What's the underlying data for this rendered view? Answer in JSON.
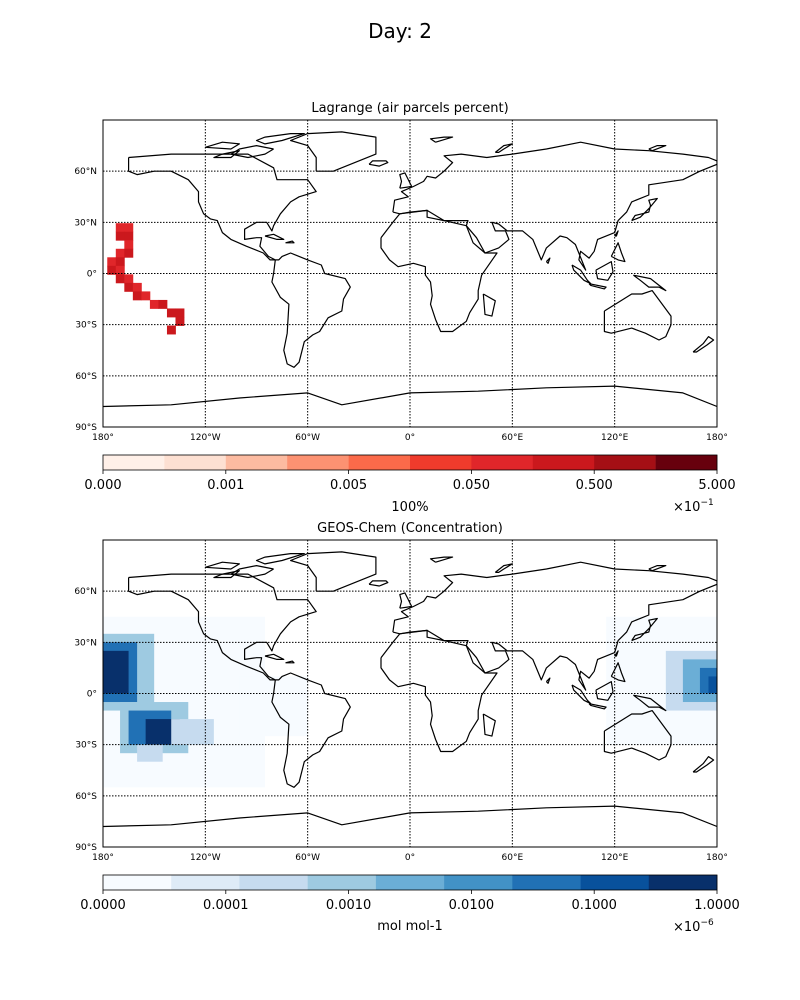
{
  "figure": {
    "title": "Day: 2"
  },
  "panels": [
    {
      "id": "lagrange",
      "title": "Lagrange (air parcels percent)",
      "lat_ticks": [
        "60°N",
        "30°N",
        "0°",
        "30°S",
        "60°S",
        "90°S"
      ],
      "lon_ticks": [
        "180°",
        "120°W",
        "60°W",
        "0°",
        "60°E",
        "120°E",
        "180°"
      ],
      "colorbar": {
        "colors": [
          "#fff0e8",
          "#fde0d2",
          "#fcbba1",
          "#fc9272",
          "#fb6a4a",
          "#ef3b2c",
          "#e0262a",
          "#cb181d",
          "#a50f15",
          "#67000d"
        ],
        "tick_labels": [
          "0.000",
          "0.001",
          "0.005",
          "0.050",
          "0.500",
          "5.000"
        ],
        "label": "100%",
        "multiplier": "×10",
        "exponent": "−1"
      },
      "grid_cells": [
        [
          -170,
          27,
          "#e0262a"
        ],
        [
          -165,
          27,
          "#e0262a"
        ],
        [
          -170,
          22,
          "#cb181d"
        ],
        [
          -165,
          22,
          "#cb181d"
        ],
        [
          -165,
          17,
          "#e0262a"
        ],
        [
          -170,
          12,
          "#e0262a"
        ],
        [
          -165,
          12,
          "#cb181d"
        ],
        [
          -175,
          7,
          "#e0262a"
        ],
        [
          -170,
          7,
          "#cb181d"
        ],
        [
          -175,
          2,
          "#cb181d"
        ],
        [
          -170,
          2,
          "#e0262a"
        ],
        [
          -170,
          -3,
          "#cb181d"
        ],
        [
          -165,
          -3,
          "#e0262a"
        ],
        [
          -165,
          -8,
          "#cb181d"
        ],
        [
          -160,
          -8,
          "#e0262a"
        ],
        [
          -160,
          -13,
          "#cb181d"
        ],
        [
          -155,
          -13,
          "#e0262a"
        ],
        [
          -150,
          -18,
          "#e0262a"
        ],
        [
          -145,
          -18,
          "#cb181d"
        ],
        [
          -140,
          -23,
          "#cb181d"
        ],
        [
          -135,
          -23,
          "#cb181d"
        ],
        [
          -135,
          -28,
          "#cb181d"
        ],
        [
          -140,
          -33,
          "#cb181d"
        ]
      ]
    },
    {
      "id": "geoschem",
      "title": "GEOS-Chem (Concentration)",
      "lat_ticks": [
        "60°N",
        "30°N",
        "0°",
        "30°S",
        "60°S",
        "90°S"
      ],
      "lon_ticks": [
        "180°",
        "120°W",
        "60°W",
        "0°",
        "60°E",
        "120°E",
        "180°"
      ],
      "colorbar": {
        "colors": [
          "#f7fbff",
          "#deebf7",
          "#c6dbef",
          "#9ecae1",
          "#6baed6",
          "#4292c6",
          "#2171b5",
          "#08519c",
          "#08306b"
        ],
        "tick_labels": [
          "0.0000",
          "0.0001",
          "0.0010",
          "0.0100",
          "0.1000",
          "1.0000"
        ],
        "label": "mol mol-1",
        "multiplier": "×10",
        "exponent": "−6"
      },
      "regions": [
        {
          "lon_min": -180,
          "lon_max": -85,
          "lat_min": -55,
          "lat_max": 45,
          "level": 0
        },
        {
          "lon_min": -100,
          "lon_max": -60,
          "lat_min": -25,
          "lat_max": 10,
          "level": 0
        },
        {
          "lon_min": 115,
          "lon_max": 180,
          "lat_min": -30,
          "lat_max": 45,
          "level": 0
        },
        {
          "lon_min": -180,
          "lon_max": -150,
          "lat_min": -10,
          "lat_max": 35,
          "level": 3
        },
        {
          "lon_min": -180,
          "lon_max": -160,
          "lat_min": -5,
          "lat_max": 30,
          "level": 6
        },
        {
          "lon_min": -180,
          "lon_max": -165,
          "lat_min": 0,
          "lat_max": 25,
          "level": 8
        },
        {
          "lon_min": -170,
          "lon_max": -130,
          "lat_min": -35,
          "lat_max": -5,
          "level": 3
        },
        {
          "lon_min": -165,
          "lon_max": -140,
          "lat_min": -30,
          "lat_max": -10,
          "level": 6
        },
        {
          "lon_min": -155,
          "lon_max": -135,
          "lat_min": -30,
          "lat_max": -15,
          "level": 8
        },
        {
          "lon_min": -140,
          "lon_max": -115,
          "lat_min": -30,
          "lat_max": -15,
          "level": 2
        },
        {
          "lon_min": -160,
          "lon_max": -145,
          "lat_min": -40,
          "lat_max": -30,
          "level": 2
        },
        {
          "lon_min": 150,
          "lon_max": 180,
          "lat_min": -10,
          "lat_max": 25,
          "level": 2
        },
        {
          "lon_min": 160,
          "lon_max": 180,
          "lat_min": -5,
          "lat_max": 20,
          "level": 4
        },
        {
          "lon_min": 170,
          "lon_max": 180,
          "lat_min": 0,
          "lat_max": 15,
          "level": 6
        },
        {
          "lon_min": 175,
          "lon_max": 180,
          "lat_min": 0,
          "lat_max": 10,
          "level": 7
        }
      ]
    }
  ],
  "coastlines": [
    [
      [
        -165,
        68
      ],
      [
        -140,
        70
      ],
      [
        -125,
        70
      ],
      [
        -95,
        70
      ],
      [
        -80,
        62
      ],
      [
        -78,
        55
      ],
      [
        -60,
        55
      ],
      [
        -55,
        48
      ],
      [
        -65,
        45
      ],
      [
        -70,
        42
      ],
      [
        -76,
        35
      ],
      [
        -80,
        28
      ],
      [
        -81,
        25
      ],
      [
        -84,
        30
      ],
      [
        -90,
        30
      ],
      [
        -97,
        26
      ],
      [
        -97,
        20
      ],
      [
        -90,
        21
      ],
      [
        -87,
        21
      ],
      [
        -88,
        16
      ],
      [
        -83,
        10
      ],
      [
        -79,
        8
      ],
      [
        -80,
        0
      ],
      [
        -81,
        -5
      ],
      [
        -76,
        -14
      ],
      [
        -71,
        -18
      ],
      [
        -72,
        -35
      ],
      [
        -74,
        -45
      ],
      [
        -72,
        -53
      ],
      [
        -68,
        -55
      ],
      [
        -65,
        -52
      ],
      [
        -62,
        -40
      ],
      [
        -57,
        -36
      ],
      [
        -53,
        -34
      ],
      [
        -48,
        -26
      ],
      [
        -40,
        -22
      ],
      [
        -39,
        -15
      ],
      [
        -35,
        -8
      ],
      [
        -38,
        -3
      ],
      [
        -50,
        0
      ],
      [
        -52,
        5
      ],
      [
        -60,
        8
      ],
      [
        -70,
        12
      ],
      [
        -75,
        10
      ],
      [
        -77,
        8
      ],
      [
        -82,
        8
      ],
      [
        -86,
        12
      ],
      [
        -91,
        14
      ],
      [
        -96,
        16
      ],
      [
        -105,
        20
      ],
      [
        -110,
        24
      ],
      [
        -113,
        31
      ],
      [
        -117,
        32
      ],
      [
        -121,
        35
      ],
      [
        -124,
        42
      ],
      [
        -124,
        48
      ],
      [
        -130,
        55
      ],
      [
        -140,
        60
      ],
      [
        -150,
        60
      ],
      [
        -160,
        58
      ],
      [
        -165,
        60
      ],
      [
        -165,
        68
      ]
    ],
    [
      [
        -55,
        60
      ],
      [
        -45,
        60
      ],
      [
        -20,
        70
      ],
      [
        -20,
        80
      ],
      [
        -40,
        83
      ],
      [
        -60,
        82
      ],
      [
        -70,
        78
      ],
      [
        -60,
        75
      ],
      [
        -55,
        68
      ],
      [
        -55,
        60
      ]
    ],
    [
      [
        -10,
        36
      ],
      [
        -9,
        43
      ],
      [
        -1,
        45
      ],
      [
        -5,
        48
      ],
      [
        2,
        51
      ],
      [
        8,
        54
      ],
      [
        10,
        57
      ],
      [
        15,
        56
      ],
      [
        20,
        60
      ],
      [
        25,
        65
      ],
      [
        20,
        69
      ],
      [
        30,
        70
      ],
      [
        45,
        68
      ],
      [
        60,
        70
      ],
      [
        80,
        73
      ],
      [
        100,
        77
      ],
      [
        120,
        73
      ],
      [
        140,
        72
      ],
      [
        160,
        70
      ],
      [
        175,
        68
      ],
      [
        180,
        66
      ],
      [
        180,
        64
      ],
      [
        170,
        60
      ],
      [
        160,
        55
      ],
      [
        140,
        52
      ],
      [
        140,
        46
      ],
      [
        130,
        42
      ],
      [
        127,
        36
      ],
      [
        122,
        31
      ],
      [
        120,
        24
      ],
      [
        110,
        20
      ],
      [
        108,
        13
      ],
      [
        105,
        9
      ],
      [
        100,
        13
      ],
      [
        99,
        8
      ],
      [
        103,
        2
      ],
      [
        97,
        17
      ],
      [
        92,
        21
      ],
      [
        88,
        22
      ],
      [
        80,
        15
      ],
      [
        77,
        8
      ],
      [
        72,
        20
      ],
      [
        66,
        25
      ],
      [
        57,
        25
      ],
      [
        52,
        29
      ],
      [
        48,
        30
      ],
      [
        50,
        25
      ],
      [
        56,
        25
      ],
      [
        58,
        20
      ],
      [
        52,
        15
      ],
      [
        44,
        12
      ],
      [
        39,
        21
      ],
      [
        33,
        28
      ],
      [
        34,
        31
      ],
      [
        30,
        31
      ],
      [
        20,
        31
      ],
      [
        10,
        33
      ],
      [
        10,
        37
      ],
      [
        0,
        36
      ],
      [
        -6,
        35
      ],
      [
        -10,
        36
      ]
    ],
    [
      [
        -17,
        21
      ],
      [
        -17,
        15
      ],
      [
        -12,
        8
      ],
      [
        -7,
        4
      ],
      [
        2,
        6
      ],
      [
        9,
        4
      ],
      [
        9,
        -1
      ],
      [
        12,
        -5
      ],
      [
        13,
        -13
      ],
      [
        12,
        -18
      ],
      [
        15,
        -27
      ],
      [
        18,
        -34
      ],
      [
        25,
        -34
      ],
      [
        33,
        -28
      ],
      [
        35,
        -23
      ],
      [
        40,
        -15
      ],
      [
        40,
        -10
      ],
      [
        42,
        -1
      ],
      [
        51,
        12
      ],
      [
        44,
        12
      ],
      [
        37,
        18
      ],
      [
        33,
        28
      ],
      [
        20,
        31
      ],
      [
        10,
        37
      ],
      [
        -6,
        35
      ],
      [
        -10,
        30
      ],
      [
        -17,
        21
      ]
    ],
    [
      [
        114,
        -22
      ],
      [
        114,
        -34
      ],
      [
        118,
        -35
      ],
      [
        130,
        -32
      ],
      [
        138,
        -35
      ],
      [
        146,
        -39
      ],
      [
        150,
        -37
      ],
      [
        153,
        -30
      ],
      [
        153,
        -25
      ],
      [
        142,
        -10
      ],
      [
        136,
        -12
      ],
      [
        130,
        -12
      ],
      [
        122,
        -17
      ],
      [
        114,
        -22
      ]
    ],
    [
      [
        -180,
        -78
      ],
      [
        -140,
        -77
      ],
      [
        -100,
        -73
      ],
      [
        -60,
        -70
      ],
      [
        -40,
        -77
      ],
      [
        0,
        -70
      ],
      [
        40,
        -69
      ],
      [
        80,
        -67
      ],
      [
        120,
        -66
      ],
      [
        160,
        -70
      ],
      [
        180,
        -78
      ]
    ],
    [
      [
        -6,
        50
      ],
      [
        -5,
        54
      ],
      [
        -6,
        58
      ],
      [
        -3,
        59
      ],
      [
        0,
        53
      ],
      [
        1,
        51
      ],
      [
        -6,
        50
      ]
    ],
    [
      [
        -24,
        64
      ],
      [
        -22,
        66
      ],
      [
        -14,
        66
      ],
      [
        -13,
        65
      ],
      [
        -18,
        63
      ],
      [
        -24,
        64
      ]
    ],
    [
      [
        130,
        31
      ],
      [
        132,
        34
      ],
      [
        136,
        35
      ],
      [
        140,
        36
      ],
      [
        141,
        40
      ],
      [
        140,
        43
      ],
      [
        145,
        44
      ],
      [
        140,
        38
      ],
      [
        135,
        33
      ],
      [
        130,
        31
      ]
    ],
    [
      [
        95,
        5
      ],
      [
        100,
        2
      ],
      [
        104,
        -4
      ],
      [
        106,
        -6
      ],
      [
        102,
        -4
      ],
      [
        96,
        2
      ],
      [
        95,
        5
      ]
    ],
    [
      [
        105,
        -6
      ],
      [
        115,
        -8
      ],
      [
        114,
        -9
      ],
      [
        106,
        -7
      ],
      [
        105,
        -6
      ]
    ],
    [
      [
        109,
        2
      ],
      [
        118,
        7
      ],
      [
        119,
        1
      ],
      [
        116,
        -4
      ],
      [
        110,
        -3
      ],
      [
        109,
        2
      ]
    ],
    [
      [
        131,
        -1
      ],
      [
        141,
        -3
      ],
      [
        150,
        -10
      ],
      [
        146,
        -8
      ],
      [
        140,
        -8
      ],
      [
        135,
        -4
      ],
      [
        131,
        -1
      ]
    ],
    [
      [
        43,
        -12
      ],
      [
        50,
        -16
      ],
      [
        48,
        -25
      ],
      [
        44,
        -24
      ],
      [
        43,
        -12
      ]
    ],
    [
      [
        166,
        -46
      ],
      [
        172,
        -41
      ],
      [
        175,
        -37
      ],
      [
        178,
        -39
      ],
      [
        174,
        -42
      ],
      [
        168,
        -46
      ],
      [
        166,
        -46
      ]
    ],
    [
      [
        -80,
        73
      ],
      [
        -90,
        75
      ],
      [
        -100,
        73
      ],
      [
        -105,
        70
      ],
      [
        -95,
        68
      ],
      [
        -85,
        70
      ],
      [
        -80,
        73
      ]
    ],
    [
      [
        -120,
        74
      ],
      [
        -110,
        77
      ],
      [
        -100,
        76
      ],
      [
        -105,
        73
      ],
      [
        -120,
        74
      ]
    ],
    [
      [
        -85,
        80
      ],
      [
        -70,
        82
      ],
      [
        -62,
        82
      ],
      [
        -75,
        78
      ],
      [
        -85,
        76
      ],
      [
        -90,
        78
      ],
      [
        -85,
        80
      ]
    ],
    [
      [
        -110,
        70
      ],
      [
        -100,
        72
      ],
      [
        -105,
        68
      ],
      [
        -115,
        68
      ],
      [
        -110,
        70
      ]
    ],
    [
      [
        15,
        77
      ],
      [
        25,
        80
      ],
      [
        20,
        80
      ],
      [
        12,
        79
      ],
      [
        15,
        77
      ]
    ],
    [
      [
        50,
        71
      ],
      [
        55,
        75
      ],
      [
        60,
        76
      ],
      [
        55,
        73
      ],
      [
        52,
        71
      ],
      [
        50,
        71
      ]
    ],
    [
      [
        140,
        73
      ],
      [
        145,
        75
      ],
      [
        150,
        75
      ],
      [
        142,
        72
      ],
      [
        140,
        73
      ]
    ],
    [
      [
        118,
        10
      ],
      [
        122,
        18
      ],
      [
        124,
        12
      ],
      [
        126,
        7
      ],
      [
        122,
        8
      ],
      [
        118,
        10
      ]
    ],
    [
      [
        120,
        22
      ],
      [
        122,
        25
      ],
      [
        121,
        22
      ],
      [
        120,
        22
      ]
    ],
    [
      [
        -85,
        22
      ],
      [
        -80,
        23
      ],
      [
        -74,
        20
      ],
      [
        -78,
        20
      ],
      [
        -85,
        22
      ]
    ],
    [
      [
        -73,
        18
      ],
      [
        -69,
        19
      ],
      [
        -68,
        18
      ],
      [
        -73,
        18
      ]
    ],
    [
      [
        80,
        7
      ],
      [
        82,
        9
      ],
      [
        81,
        6
      ],
      [
        80,
        7
      ]
    ]
  ]
}
